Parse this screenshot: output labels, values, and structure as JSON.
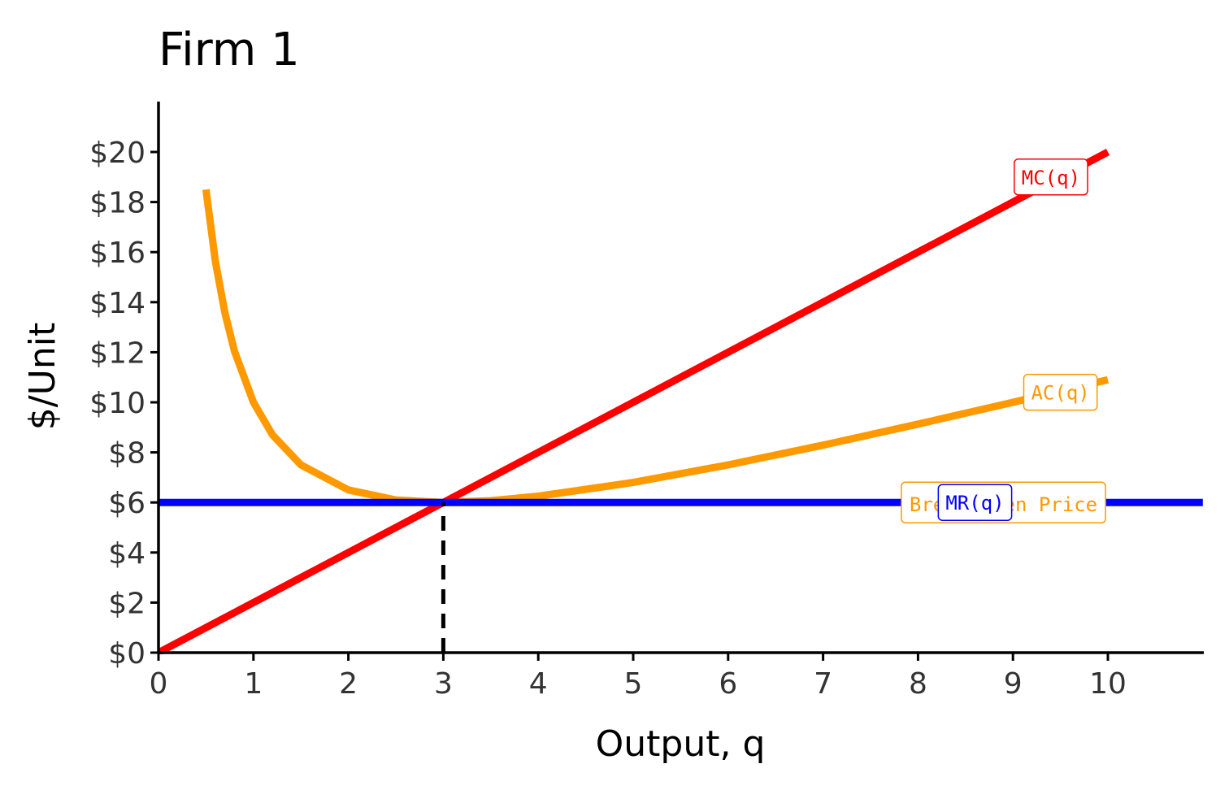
{
  "chart_data": {
    "type": "line",
    "title": "Firm 1",
    "xlabel": "Output, q",
    "ylabel": "$/Unit",
    "xlim": [
      0,
      11
    ],
    "ylim": [
      0,
      22
    ],
    "x_ticks": [
      0,
      1,
      2,
      3,
      4,
      5,
      6,
      7,
      8,
      9,
      10
    ],
    "x_tick_labels": [
      "0",
      "1",
      "2",
      "3",
      "4",
      "5",
      "6",
      "7",
      "8",
      "9",
      "10"
    ],
    "y_ticks": [
      0,
      2,
      4,
      6,
      8,
      10,
      12,
      14,
      16,
      18,
      20
    ],
    "y_tick_labels": [
      "$0",
      "$2",
      "$4",
      "$6",
      "$8",
      "$10",
      "$12",
      "$14",
      "$16",
      "$18",
      "$20"
    ],
    "grid": false,
    "series": [
      {
        "name": "MC(q)",
        "color": "#ff0000",
        "x": [
          0,
          10
        ],
        "y": [
          0,
          20
        ],
        "label_at": [
          9.4,
          19.0
        ]
      },
      {
        "name": "AC(q)",
        "color": "#ff9900",
        "x": [
          0.5,
          0.6,
          0.7,
          0.8,
          1.0,
          1.2,
          1.5,
          2.0,
          2.5,
          3.0,
          3.5,
          4.0,
          5.0,
          6.0,
          7.0,
          8.0,
          9.0,
          10.0
        ],
        "y": [
          18.5,
          15.6,
          13.56,
          12.05,
          10.0,
          8.7,
          7.5,
          6.5,
          6.1,
          6.0,
          6.07,
          6.25,
          6.8,
          7.5,
          8.29,
          9.13,
          10.0,
          10.9
        ],
        "label_at": [
          9.5,
          10.4
        ]
      },
      {
        "name": "MR(q)",
        "color": "#0000ff",
        "x": [
          0,
          11
        ],
        "y": [
          6,
          6
        ],
        "label_at": [
          8.6,
          6.0
        ]
      }
    ],
    "annotations": [
      {
        "text": "Break-even Price",
        "color": "#ff9900",
        "x": 8.9,
        "y": 6.0
      }
    ],
    "reference_lines": [
      {
        "type": "vertical",
        "x": 3,
        "y_from": 0,
        "y_to": 6,
        "style": "dashed",
        "color": "#000000"
      }
    ]
  }
}
